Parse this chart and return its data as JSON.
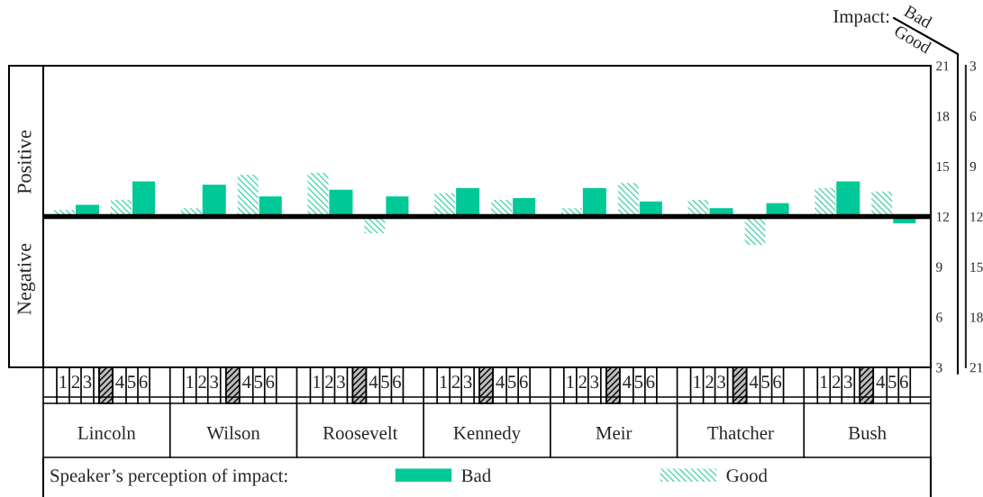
{
  "chart_data": {
    "type": "bar",
    "categories": [
      "Lincoln",
      "Wilson",
      "Roosevelt",
      "Kennedy",
      "Meir",
      "Thatcher",
      "Bush"
    ],
    "series": [
      {
        "name": "Bad",
        "color": "#00c896",
        "base": [
          12,
          12,
          12,
          12,
          12,
          12,
          12
        ],
        "values": [
          0.7,
          1.9,
          1.6,
          1.7,
          1.7,
          0.5,
          2.1
        ]
      },
      {
        "name": "Good",
        "color": "#4fd6b0",
        "base": [
          12,
          12,
          12,
          12,
          12,
          12,
          12
        ],
        "values": [
          0.4,
          0.5,
          2.6,
          1.4,
          0.5,
          1.0,
          1.7
        ]
      },
      {
        "color": "#00c896",
        "base": [
          12,
          12,
          12,
          12,
          12,
          12,
          12
        ],
        "values": [
          2.1,
          1.2,
          1.2,
          1.1,
          0.9,
          0.8,
          -0.4
        ]
      },
      {
        "color": "#4fd6b0",
        "base": [
          12,
          12,
          12,
          12,
          12,
          12,
          12
        ],
        "values": [
          1.0,
          2.5,
          -1.0,
          1.0,
          2.0,
          -1.7,
          1.5
        ]
      }
    ],
    "ylim": [
      3,
      21
    ],
    "yticks": [
      3,
      6,
      9,
      12,
      15,
      18,
      21
    ],
    "y2lim": [
      21,
      3
    ],
    "y2ticks": [
      3,
      6,
      9,
      12,
      15,
      18,
      21
    ],
    "ref_lines": [
      {
        "axis": "y",
        "value": 12,
        "color": "#000000"
      }
    ],
    "legend_title": "Speaker’s perception of impact:",
    "legend": "bottom",
    "grid": false,
    "annotations": [
      "Positive",
      "Negative",
      "Impact:",
      "Bad",
      "Good",
      "1",
      "2",
      "3",
      "4",
      "5",
      "6"
    ]
  }
}
